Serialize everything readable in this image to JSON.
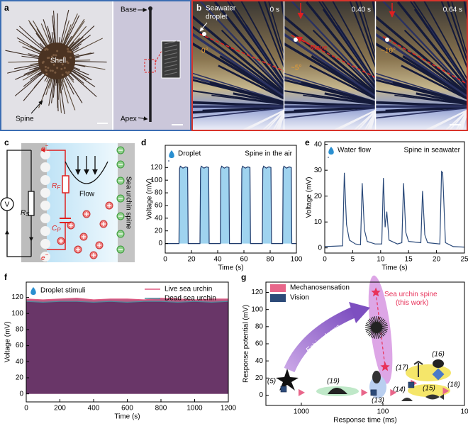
{
  "panels": {
    "a": {
      "label": "a",
      "shell": "Shell",
      "spine": "Spine",
      "base": "Base",
      "apex": "Apex"
    },
    "b": {
      "label": "b",
      "droplet": [
        "Seawater",
        "droplet"
      ],
      "times": [
        "0 s",
        "0.40 s",
        "0.64 s"
      ],
      "angles": [
        "0°",
        "~5°",
        "~10°"
      ],
      "move": "Move"
    },
    "c": {
      "label": "c",
      "electron": {
        "base": "e",
        "sup": "−"
      },
      "voltmeter": "V",
      "rs": {
        "base": "R",
        "sub": "S"
      },
      "rf": {
        "base": "R",
        "sub": "F"
      },
      "cp": {
        "base": "C",
        "sub": "P"
      },
      "flow": "Flow",
      "spine": "Sea urchin spine"
    }
  },
  "chart_data": [
    {
      "type": "line",
      "panel_label": "d",
      "xlabel": "Time (s)",
      "ylabel": "Voltage (mV)",
      "annotation": "Spine in the air",
      "xlim": [
        0,
        100
      ],
      "ylim": [
        -15,
        155
      ],
      "xticks": [
        0,
        20,
        40,
        60,
        80,
        100
      ],
      "yticks": [
        0,
        20,
        40,
        60,
        80,
        100,
        120
      ],
      "series": [
        {
          "name": "Droplet",
          "color": "#1f3a6b",
          "fill": "#9fd3ef",
          "x": [
            0,
            10.5,
            10.9,
            11.5,
            13.5,
            15.5,
            17.1,
            17.5,
            26.5,
            26.9,
            27.5,
            29.5,
            31.5,
            33.1,
            33.5,
            42,
            42.4,
            43,
            45,
            47,
            48.6,
            49,
            58,
            58.4,
            59,
            61,
            63,
            64.6,
            65,
            74,
            74.4,
            75,
            77,
            79,
            80.6,
            81,
            89.5,
            89.9,
            90.5,
            92.5,
            94.5,
            96.1,
            96.5,
            100
          ],
          "values": [
            0,
            0,
            118,
            122,
            119,
            121,
            120,
            0,
            0,
            118,
            122,
            119,
            121,
            120,
            0,
            0,
            118,
            122,
            119,
            121,
            120,
            0,
            0,
            118,
            122,
            119,
            121,
            120,
            0,
            0,
            118,
            122,
            119,
            121,
            120,
            0,
            0,
            118,
            122,
            119,
            121,
            120,
            0,
            0
          ]
        }
      ]
    },
    {
      "type": "line",
      "panel_label": "e",
      "xlabel": "Time (s)",
      "ylabel": "Voltage (mV)",
      "annotation": "Spine in seawater",
      "xlim": [
        0,
        25
      ],
      "ylim": [
        -2,
        41
      ],
      "xticks": [
        0,
        5,
        10,
        15,
        20,
        25
      ],
      "yticks": [
        0,
        10,
        20,
        30,
        40
      ],
      "series": [
        {
          "name": "Water flow",
          "color": "#2b4a7a",
          "x": [
            0,
            3.2,
            3.5,
            3.9,
            4.4,
            5.5,
            6.4,
            6.7,
            7.1,
            7.6,
            9,
            10.2,
            10.5,
            10.8,
            11.1,
            11.5,
            13,
            13.8,
            14.1,
            14.5,
            15,
            17.2,
            17.5,
            17.9,
            18.4,
            20.6,
            20.9,
            21.1,
            21.6,
            23,
            25
          ],
          "values": [
            0.5,
            0.8,
            29,
            9,
            3,
            1.5,
            1.2,
            25,
            7,
            2.5,
            1.5,
            1.5,
            27,
            8,
            14,
            3,
            1.5,
            2,
            25,
            6,
            2.5,
            2,
            22,
            5,
            2,
            1.5,
            29.5,
            29,
            2,
            0.5,
            0.3
          ]
        }
      ]
    },
    {
      "type": "area",
      "panel_label": "f",
      "xlabel": "Time (s)",
      "ylabel": "Voltage (mV)",
      "annotation": "Droplet stimuli",
      "legend": "upper right",
      "xlim": [
        0,
        1200
      ],
      "ylim": [
        -10,
        139
      ],
      "xticks": [
        0,
        200,
        400,
        600,
        800,
        1000,
        1200
      ],
      "yticks": [
        0,
        20,
        40,
        60,
        80,
        100,
        120
      ],
      "series": [
        {
          "name": "Live sea urchin",
          "color": "#e05a82",
          "fill": "#b0416f",
          "x": [
            0,
            100,
            200,
            300,
            400,
            500,
            600,
            700,
            800,
            900,
            1000,
            1100,
            1200
          ],
          "values": [
            118,
            117,
            118,
            119,
            117,
            118,
            118,
            117,
            119,
            118,
            117,
            118,
            118
          ]
        },
        {
          "name": "Dead sea urchin",
          "color": "#4f8a9c",
          "fill": "#5b2f63",
          "x": [
            0,
            100,
            200,
            300,
            400,
            500,
            600,
            700,
            800,
            900,
            1000,
            1100,
            1200
          ],
          "values": [
            115,
            114,
            115,
            115,
            114,
            115,
            114,
            115,
            115,
            114,
            115,
            114,
            115
          ]
        }
      ]
    },
    {
      "type": "scatter",
      "panel_label": "g",
      "xlabel": "Response time (ms)",
      "ylabel": "Response potential (mV)",
      "legend": "upper left",
      "xscale": "log",
      "xlim": [
        2720,
        10
      ],
      "ylim": [
        -12,
        132
      ],
      "xticks": [
        1000,
        100,
        10
      ],
      "yticks": [
        0,
        20,
        40,
        60,
        80,
        100,
        120
      ],
      "series": [
        {
          "name": "Mechanosensation",
          "color": "#e8668a",
          "marker": "triangle",
          "x": [
            1000,
            170,
            75,
            42,
            17
          ],
          "values": [
            3,
            3,
            3,
            14,
            5
          ]
        },
        {
          "name": "Vision",
          "color": "#2c4a78",
          "marker": "square",
          "x": [
            1650,
            130,
            45
          ],
          "values": [
            7,
            3,
            12
          ]
        }
      ],
      "highlight": {
        "name": [
          "Sea urchin spine",
          "(this work)"
        ],
        "color": "#e8325a",
        "x": [
          122,
          94
        ],
        "values": [
          120,
          33
        ]
      },
      "annotations": [
        "Echinoderms",
        "(5)",
        "(19)",
        "(13)",
        "(17)",
        "(16)",
        "(14)",
        "(15)",
        "(18)"
      ]
    }
  ]
}
